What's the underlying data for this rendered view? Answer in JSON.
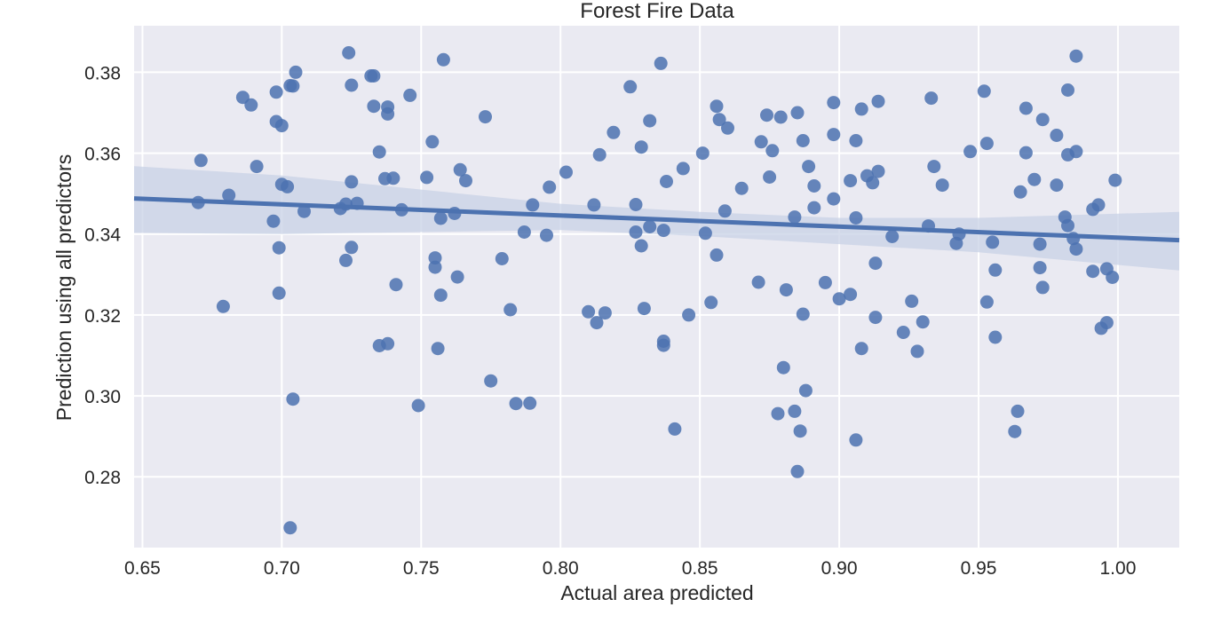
{
  "chart_data": {
    "type": "scatter",
    "title": "Forest Fire Data",
    "xlabel": "Actual area predicted",
    "ylabel": "Prediction using all predictors",
    "xlim": [
      0.647,
      1.022
    ],
    "ylim": [
      0.2625,
      0.3915
    ],
    "xticks": [
      0.65,
      0.7,
      0.75,
      0.8,
      0.85,
      0.9,
      0.95,
      1.0
    ],
    "xtick_labels": [
      "0.65",
      "0.70",
      "0.75",
      "0.80",
      "0.85",
      "0.90",
      "0.95",
      "1.00"
    ],
    "yticks": [
      0.28,
      0.3,
      0.32,
      0.34,
      0.36,
      0.38
    ],
    "ytick_labels": [
      "0.28",
      "0.30",
      "0.32",
      "0.34",
      "0.36",
      "0.38"
    ],
    "grid": true,
    "colors": {
      "background": "#eaeaf2",
      "grid": "#ffffff",
      "points": "#4c72b0",
      "band": "#c8d1e6"
    },
    "regression": {
      "x": [
        0.647,
        1.022
      ],
      "y": [
        0.3488,
        0.3385
      ]
    },
    "ci_band": {
      "x": [
        0.647,
        0.7,
        0.8,
        0.85,
        0.9,
        0.95,
        1.022
      ],
      "lower": [
        0.3403,
        0.34,
        0.341,
        0.3395,
        0.3375,
        0.3355,
        0.331
      ],
      "upper": [
        0.3568,
        0.3545,
        0.3475,
        0.3455,
        0.344,
        0.344,
        0.3455
      ]
    },
    "points": [
      [
        0.67,
        0.3478
      ],
      [
        0.671,
        0.3582
      ],
      [
        0.679,
        0.3221
      ],
      [
        0.681,
        0.3496
      ],
      [
        0.686,
        0.3738
      ],
      [
        0.689,
        0.3719
      ],
      [
        0.691,
        0.3567
      ],
      [
        0.697,
        0.3432
      ],
      [
        0.698,
        0.3751
      ],
      [
        0.698,
        0.3678
      ],
      [
        0.699,
        0.3366
      ],
      [
        0.699,
        0.3254
      ],
      [
        0.7,
        0.3668
      ],
      [
        0.7,
        0.3523
      ],
      [
        0.702,
        0.3517
      ],
      [
        0.703,
        0.3767
      ],
      [
        0.703,
        0.2674
      ],
      [
        0.704,
        0.3766
      ],
      [
        0.704,
        0.2992
      ],
      [
        0.705,
        0.38
      ],
      [
        0.708,
        0.3456
      ],
      [
        0.721,
        0.3463
      ],
      [
        0.723,
        0.3474
      ],
      [
        0.723,
        0.3335
      ],
      [
        0.724,
        0.3848
      ],
      [
        0.725,
        0.3529
      ],
      [
        0.725,
        0.3768
      ],
      [
        0.725,
        0.3367
      ],
      [
        0.727,
        0.3476
      ],
      [
        0.732,
        0.3791
      ],
      [
        0.733,
        0.3791
      ],
      [
        0.733,
        0.3716
      ],
      [
        0.735,
        0.3124
      ],
      [
        0.735,
        0.3603
      ],
      [
        0.737,
        0.3537
      ],
      [
        0.738,
        0.3714
      ],
      [
        0.738,
        0.3129
      ],
      [
        0.738,
        0.3697
      ],
      [
        0.74,
        0.3538
      ],
      [
        0.741,
        0.3275
      ],
      [
        0.743,
        0.346
      ],
      [
        0.746,
        0.3743
      ],
      [
        0.749,
        0.2976
      ],
      [
        0.752,
        0.354
      ],
      [
        0.754,
        0.3628
      ],
      [
        0.755,
        0.3318
      ],
      [
        0.755,
        0.3341
      ],
      [
        0.756,
        0.3117
      ],
      [
        0.757,
        0.3439
      ],
      [
        0.757,
        0.3249
      ],
      [
        0.758,
        0.3831
      ],
      [
        0.762,
        0.3451
      ],
      [
        0.763,
        0.3294
      ],
      [
        0.764,
        0.3559
      ],
      [
        0.766,
        0.3532
      ],
      [
        0.773,
        0.369
      ],
      [
        0.775,
        0.3037
      ],
      [
        0.779,
        0.3339
      ],
      [
        0.782,
        0.3213
      ],
      [
        0.784,
        0.2981
      ],
      [
        0.787,
        0.3405
      ],
      [
        0.79,
        0.3472
      ],
      [
        0.789,
        0.2982
      ],
      [
        0.795,
        0.3397
      ],
      [
        0.796,
        0.3516
      ],
      [
        0.802,
        0.3553
      ],
      [
        0.81,
        0.3208
      ],
      [
        0.812,
        0.3472
      ],
      [
        0.813,
        0.3181
      ],
      [
        0.814,
        0.3596
      ],
      [
        0.816,
        0.3205
      ],
      [
        0.819,
        0.3651
      ],
      [
        0.825,
        0.3764
      ],
      [
        0.827,
        0.3473
      ],
      [
        0.827,
        0.3405
      ],
      [
        0.829,
        0.3371
      ],
      [
        0.829,
        0.3615
      ],
      [
        0.83,
        0.3216
      ],
      [
        0.832,
        0.3418
      ],
      [
        0.832,
        0.368
      ],
      [
        0.836,
        0.3822
      ],
      [
        0.837,
        0.3135
      ],
      [
        0.837,
        0.3125
      ],
      [
        0.837,
        0.3409
      ],
      [
        0.838,
        0.353
      ],
      [
        0.841,
        0.2918
      ],
      [
        0.844,
        0.3562
      ],
      [
        0.846,
        0.32
      ],
      [
        0.851,
        0.36
      ],
      [
        0.852,
        0.3402
      ],
      [
        0.854,
        0.3231
      ],
      [
        0.856,
        0.3716
      ],
      [
        0.856,
        0.3348
      ],
      [
        0.857,
        0.3683
      ],
      [
        0.859,
        0.3457
      ],
      [
        0.86,
        0.3662
      ],
      [
        0.865,
        0.3513
      ],
      [
        0.871,
        0.3281
      ],
      [
        0.872,
        0.3628
      ],
      [
        0.874,
        0.3694
      ],
      [
        0.875,
        0.3541
      ],
      [
        0.876,
        0.3606
      ],
      [
        0.878,
        0.2956
      ],
      [
        0.879,
        0.3689
      ],
      [
        0.88,
        0.307
      ],
      [
        0.881,
        0.3262
      ],
      [
        0.884,
        0.3442
      ],
      [
        0.884,
        0.2962
      ],
      [
        0.885,
        0.37
      ],
      [
        0.885,
        0.2813
      ],
      [
        0.886,
        0.2913
      ],
      [
        0.887,
        0.3631
      ],
      [
        0.887,
        0.3202
      ],
      [
        0.888,
        0.3013
      ],
      [
        0.889,
        0.3567
      ],
      [
        0.891,
        0.3519
      ],
      [
        0.891,
        0.3465
      ],
      [
        0.895,
        0.328
      ],
      [
        0.898,
        0.3725
      ],
      [
        0.898,
        0.3646
      ],
      [
        0.898,
        0.3487
      ],
      [
        0.9,
        0.324
      ],
      [
        0.904,
        0.3532
      ],
      [
        0.904,
        0.3251
      ],
      [
        0.906,
        0.344
      ],
      [
        0.906,
        0.3631
      ],
      [
        0.906,
        0.2891
      ],
      [
        0.908,
        0.3709
      ],
      [
        0.908,
        0.3117
      ],
      [
        0.91,
        0.3544
      ],
      [
        0.912,
        0.3527
      ],
      [
        0.913,
        0.3328
      ],
      [
        0.913,
        0.3194
      ],
      [
        0.914,
        0.3728
      ],
      [
        0.914,
        0.3555
      ],
      [
        0.919,
        0.3394
      ],
      [
        0.923,
        0.3157
      ],
      [
        0.926,
        0.3234
      ],
      [
        0.928,
        0.311
      ],
      [
        0.93,
        0.3183
      ],
      [
        0.932,
        0.342
      ],
      [
        0.933,
        0.3736
      ],
      [
        0.934,
        0.3567
      ],
      [
        0.937,
        0.3521
      ],
      [
        0.942,
        0.3377
      ],
      [
        0.943,
        0.34
      ],
      [
        0.947,
        0.3604
      ],
      [
        0.952,
        0.3753
      ],
      [
        0.953,
        0.3232
      ],
      [
        0.953,
        0.3624
      ],
      [
        0.955,
        0.338
      ],
      [
        0.956,
        0.3311
      ],
      [
        0.956,
        0.3145
      ],
      [
        0.963,
        0.2912
      ],
      [
        0.964,
        0.2962
      ],
      [
        0.965,
        0.3504
      ],
      [
        0.967,
        0.3601
      ],
      [
        0.967,
        0.3711
      ],
      [
        0.97,
        0.3535
      ],
      [
        0.972,
        0.3375
      ],
      [
        0.972,
        0.3317
      ],
      [
        0.973,
        0.3268
      ],
      [
        0.973,
        0.3683
      ],
      [
        0.978,
        0.3644
      ],
      [
        0.978,
        0.3521
      ],
      [
        0.981,
        0.3442
      ],
      [
        0.982,
        0.3421
      ],
      [
        0.982,
        0.3756
      ],
      [
        0.982,
        0.3596
      ],
      [
        0.984,
        0.3389
      ],
      [
        0.985,
        0.3363
      ],
      [
        0.985,
        0.384
      ],
      [
        0.985,
        0.3604
      ],
      [
        0.991,
        0.3461
      ],
      [
        0.991,
        0.3308
      ],
      [
        0.993,
        0.3472
      ],
      [
        0.994,
        0.3167
      ],
      [
        0.996,
        0.3314
      ],
      [
        0.996,
        0.3181
      ],
      [
        0.998,
        0.3293
      ],
      [
        0.999,
        0.3533
      ]
    ]
  }
}
